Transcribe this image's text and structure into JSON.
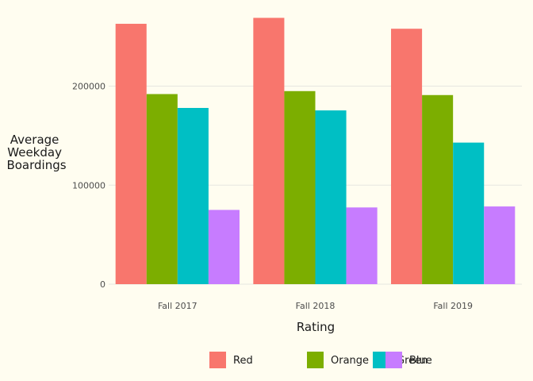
{
  "chart_data": {
    "type": "bar",
    "title": "",
    "xlabel": "Rating",
    "ylabel": [
      "Average",
      "Weekday",
      "Boardings"
    ],
    "categories": [
      "Fall 2017",
      "Fall 2018",
      "Fall 2019"
    ],
    "series": [
      {
        "name": "Red",
        "color": "#f8766d",
        "values": [
          263000,
          269000,
          258000
        ]
      },
      {
        "name": "Orange",
        "color": "#7cae00",
        "values": [
          192000,
          195000,
          191000
        ]
      },
      {
        "name": "Green",
        "color": "#00bfc4",
        "values": [
          178000,
          175500,
          143000
        ]
      },
      {
        "name": "Blue",
        "color": "#c77cff",
        "values": [
          75000,
          77500,
          78500
        ]
      }
    ],
    "yticks": [
      0,
      100000,
      200000
    ],
    "ylim": [
      0,
      275000
    ],
    "grid": true,
    "legend_position": "bottom"
  }
}
